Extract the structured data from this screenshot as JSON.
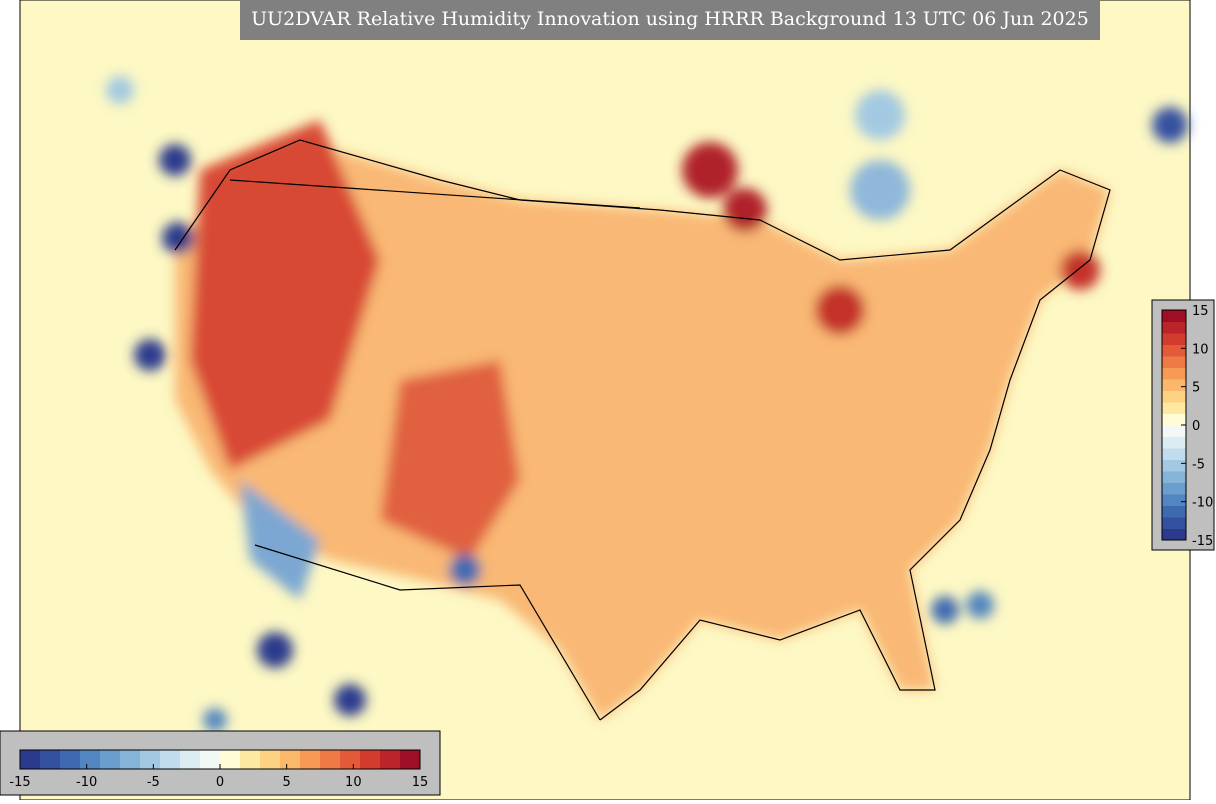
{
  "title": "UU2DVAR Relative Humidity Innovation using HRRR Background 13 UTC 06 Jun 2025",
  "colorbars": [
    {
      "orientation": "vertical",
      "ticks": [
        15,
        10,
        5,
        0,
        -5,
        -10,
        -15
      ]
    },
    {
      "orientation": "horizontal",
      "ticks": [
        -15,
        -10,
        -5,
        0,
        5,
        10,
        15
      ]
    }
  ],
  "colors": [
    "#2b3a8c",
    "#3451a0",
    "#3f6ab0",
    "#5286c0",
    "#6a9ecd",
    "#86b4d8",
    "#a3c9e2",
    "#c1dcec",
    "#dcecf3",
    "#f2f9f5",
    "#fffcd6",
    "#fee9a2",
    "#fdd383",
    "#fbb86a",
    "#f79a56",
    "#ef7a46",
    "#e35a39",
    "#d23c2f",
    "#bb2428",
    "#9e0e24"
  ]
}
